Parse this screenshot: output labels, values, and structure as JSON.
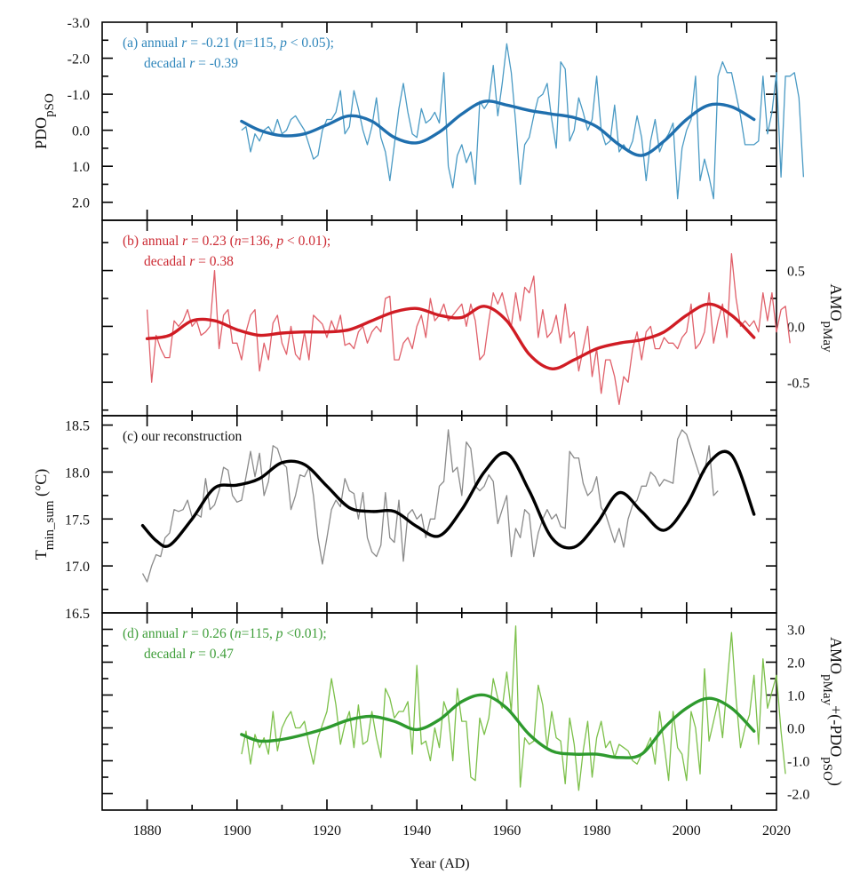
{
  "chart_data": [
    {
      "id": "a",
      "type": "line",
      "panel_label": "(a)",
      "annotation_line1": [
        "(a) annual ",
        "r",
        " = -0.21 (",
        "n",
        "=115, ",
        "p",
        " < 0.05);"
      ],
      "annotation_line2": [
        "decadal ",
        "r",
        " = -0.39"
      ],
      "ylabel_main": "PDO",
      "ylabel_sub": "pSO",
      "yaxis_side": "left",
      "ylim": [
        -3.0,
        2.5
      ],
      "y_inverted": true,
      "yticks": [
        -3.0,
        -2.0,
        -1.0,
        0.0,
        1.0,
        2.0
      ],
      "ytick_labels": [
        "-3.0",
        "-2.0",
        "-1.0",
        "0.0",
        "1.0",
        "2.0"
      ],
      "color_annual": "#4a9ac4",
      "color_decadal": "#1f6fae",
      "color_text": "#2f86bb",
      "annual": {
        "x_start": 1901,
        "values": [
          0.0,
          -0.1,
          0.6,
          0.1,
          0.3,
          0.0,
          -0.1,
          0.1,
          -0.3,
          0.1,
          0.0,
          -0.3,
          -0.4,
          -0.2,
          0.0,
          0.4,
          0.8,
          0.7,
          0.0,
          -0.3,
          -0.3,
          -0.5,
          -1.1,
          0.1,
          -0.1,
          -1.1,
          -0.6,
          0.0,
          0.4,
          -0.1,
          -0.9,
          0.2,
          0.6,
          1.4,
          0.4,
          -0.6,
          -1.3,
          -0.5,
          0.1,
          0.2,
          -0.6,
          -0.2,
          -0.3,
          -0.5,
          -0.2,
          -1.6,
          1.0,
          1.6,
          0.7,
          0.4,
          0.9,
          0.6,
          1.5,
          -0.8,
          -0.6,
          -0.8,
          -1.8,
          -0.4,
          -1.3,
          -2.4,
          -1.6,
          -0.2,
          1.5,
          0.4,
          0.2,
          -0.4,
          -0.9,
          -1.0,
          -1.3,
          -0.3,
          0.5,
          -1.9,
          -1.7,
          0.3,
          0.0,
          -0.9,
          -0.5,
          0.0,
          -0.3,
          -1.5,
          0.0,
          0.4,
          0.3,
          -0.7,
          0.6,
          0.4,
          0.6,
          0.3,
          -0.4,
          0.2,
          1.4,
          0.3,
          -0.3,
          0.6,
          0.3,
          0.1,
          -0.2,
          1.9,
          0.5,
          0.0,
          -0.3,
          -1.5,
          1.4,
          0.8,
          1.3,
          1.9,
          -1.5,
          -1.9,
          -1.6,
          -1.6,
          -1.0,
          -0.4,
          0.4,
          0.4,
          0.4,
          0.3,
          -1.5,
          0.1,
          -0.5,
          -1.6,
          1.3,
          -1.5,
          -1.5,
          -1.6,
          -0.9,
          1.3
        ],
        "note": "approximate values read from plot"
      },
      "decadal": {
        "x": [
          1901,
          1905,
          1910,
          1915,
          1920,
          1925,
          1930,
          1935,
          1940,
          1945,
          1950,
          1955,
          1960,
          1965,
          1970,
          1975,
          1980,
          1985,
          1990,
          1995,
          2000,
          2005,
          2010,
          2015
        ],
        "values": [
          -0.25,
          0.0,
          0.15,
          0.1,
          -0.15,
          -0.4,
          -0.25,
          0.2,
          0.35,
          0.05,
          -0.45,
          -0.8,
          -0.7,
          -0.55,
          -0.45,
          -0.35,
          -0.1,
          0.4,
          0.7,
          0.3,
          -0.3,
          -0.7,
          -0.65,
          -0.3
        ]
      }
    },
    {
      "id": "b",
      "type": "line",
      "panel_label": "(b)",
      "annotation_line1": [
        "(b) annual ",
        "r",
        " = 0.23 (",
        "n",
        "=136, ",
        "p",
        " < 0.01);"
      ],
      "annotation_line2": [
        "decadal ",
        "r",
        " = 0.38"
      ],
      "ylabel_main": "AMO",
      "ylabel_sub": "pMay",
      "yaxis_side": "right",
      "ylim": [
        -0.8,
        0.95
      ],
      "y_inverted": false,
      "yticks": [
        -0.5,
        0.0,
        0.5
      ],
      "ytick_labels": [
        "-0.5",
        "0.0",
        "0.5"
      ],
      "color_annual": "#e0606a",
      "color_decadal": "#d01c24",
      "color_text": "#cc2a33",
      "annual": {
        "x_start": 1880,
        "values": [
          0.15,
          -0.5,
          -0.08,
          -0.2,
          -0.28,
          -0.28,
          0.05,
          0.0,
          0.05,
          0.15,
          0.0,
          0.05,
          -0.08,
          -0.05,
          0.0,
          0.5,
          -0.2,
          0.1,
          0.15,
          -0.15,
          -0.15,
          -0.3,
          -0.05,
          0.1,
          0.15,
          -0.4,
          -0.15,
          -0.3,
          0.03,
          0.1,
          -0.15,
          -0.25,
          0.0,
          -0.25,
          -0.3,
          -0.05,
          -0.3,
          0.1,
          0.06,
          0.02,
          -0.1,
          0.05,
          -0.05,
          0.1,
          -0.17,
          -0.15,
          -0.2,
          -0.05,
          0.0,
          -0.15,
          -0.05,
          0.0,
          -0.05,
          0.25,
          0.27,
          -0.3,
          -0.3,
          -0.15,
          -0.1,
          -0.2,
          0.0,
          0.1,
          -0.1,
          0.25,
          0.05,
          0.1,
          0.2,
          0.05,
          0.1,
          0.15,
          0.2,
          0.0,
          0.2,
          0.05,
          -0.3,
          -0.25,
          0.05,
          0.3,
          0.2,
          0.3,
          0.12,
          0.0,
          0.3,
          0.05,
          0.35,
          0.3,
          0.45,
          -0.1,
          0.15,
          -0.1,
          -0.05,
          0.1,
          -0.15,
          0.2,
          -0.1,
          -0.05,
          -0.4,
          -0.2,
          0.0,
          -0.45,
          -0.2,
          -0.6,
          -0.3,
          -0.3,
          -0.45,
          -0.7,
          -0.45,
          -0.5,
          -0.2,
          -0.05,
          -0.3,
          -0.05,
          0.0,
          -0.2,
          -0.2,
          -0.1,
          -0.15,
          -0.15,
          -0.2,
          -0.1,
          -0.05,
          0.2,
          -0.2,
          -0.15,
          -0.05,
          0.3,
          -0.15,
          0.05,
          0.2,
          -0.1,
          0.65,
          0.25,
          0.0,
          0.05,
          0.0,
          0.05,
          -0.05,
          0.3,
          0.05,
          0.3,
          -0.05,
          0.15,
          0.18,
          -0.15
        ],
        "note": "approximate values read from plot"
      },
      "decadal": {
        "x": [
          1880,
          1885,
          1890,
          1895,
          1900,
          1905,
          1910,
          1915,
          1920,
          1925,
          1930,
          1935,
          1940,
          1945,
          1950,
          1955,
          1960,
          1965,
          1970,
          1975,
          1980,
          1985,
          1990,
          1995,
          2000,
          2005,
          2010,
          2015
        ],
        "values": [
          -0.11,
          -0.08,
          0.05,
          0.05,
          -0.03,
          -0.08,
          -0.06,
          -0.05,
          -0.05,
          -0.03,
          0.05,
          0.13,
          0.16,
          0.1,
          0.08,
          0.18,
          0.05,
          -0.25,
          -0.38,
          -0.3,
          -0.2,
          -0.15,
          -0.12,
          -0.05,
          0.1,
          0.2,
          0.1,
          -0.1
        ]
      }
    },
    {
      "id": "c",
      "type": "line",
      "panel_label": "(c)",
      "annotation_line1": [
        "(c) our reconstruction"
      ],
      "annotation_line2": [],
      "ylabel_main": "T",
      "ylabel_sub": "min_sum",
      "ylabel_unit": " (°C)",
      "yaxis_side": "left",
      "ylim": [
        16.5,
        18.6
      ],
      "y_inverted": false,
      "yticks": [
        16.5,
        17.0,
        17.5,
        18.0,
        18.5
      ],
      "ytick_labels": [
        "16.5",
        "17.0",
        "17.5",
        "18.0",
        "18.5"
      ],
      "color_annual": "#8a8a8a",
      "color_decadal": "#000000",
      "color_text": "#111111",
      "annual": {
        "x_start": 1879,
        "values": [
          16.92,
          16.83,
          17.0,
          17.12,
          17.1,
          17.3,
          17.35,
          17.6,
          17.58,
          17.6,
          17.7,
          17.52,
          17.55,
          17.52,
          17.93,
          17.6,
          17.65,
          17.8,
          18.05,
          18.02,
          17.75,
          17.68,
          17.7,
          17.95,
          18.22,
          17.95,
          18.2,
          17.75,
          17.9,
          18.28,
          18.25,
          18.1,
          18.05,
          17.6,
          17.75,
          17.97,
          17.95,
          18.05,
          17.75,
          17.3,
          17.02,
          17.3,
          17.6,
          17.7,
          17.63,
          17.93,
          17.8,
          17.77,
          17.5,
          17.78,
          17.3,
          17.15,
          17.1,
          17.22,
          17.78,
          17.3,
          17.25,
          17.7,
          17.05,
          17.55,
          17.6,
          17.5,
          17.55,
          17.3,
          17.5,
          17.5,
          17.85,
          17.9,
          18.45,
          18.0,
          18.05,
          17.75,
          18.32,
          18.25,
          17.85,
          17.8,
          17.85,
          17.97,
          17.9,
          17.45,
          17.6,
          17.75,
          17.1,
          17.4,
          17.3,
          17.6,
          17.55,
          17.1,
          17.35,
          17.5,
          17.6,
          17.5,
          17.55,
          17.42,
          17.4,
          18.22,
          18.15,
          18.15,
          17.88,
          17.75,
          17.8,
          17.95,
          17.62,
          17.55,
          17.4,
          17.25,
          17.4,
          17.2,
          17.5,
          17.65,
          17.7,
          17.85,
          17.85,
          18.0,
          17.95,
          17.85,
          17.92,
          17.9,
          17.88,
          18.35,
          18.45,
          18.4,
          18.25,
          18.1,
          17.95,
          18.0,
          18.28,
          17.75,
          17.8
        ],
        "note": "approximate values read from plot"
      },
      "decadal": {
        "x": [
          1879,
          1882,
          1885,
          1890,
          1895,
          1900,
          1905,
          1910,
          1915,
          1920,
          1925,
          1930,
          1935,
          1940,
          1945,
          1950,
          1955,
          1960,
          1965,
          1970,
          1975,
          1980,
          1985,
          1990,
          1995,
          2000,
          2005,
          2010,
          2015
        ],
        "values": [
          17.43,
          17.27,
          17.22,
          17.5,
          17.83,
          17.86,
          17.93,
          18.1,
          18.08,
          17.85,
          17.62,
          17.58,
          17.58,
          17.42,
          17.32,
          17.6,
          18.0,
          18.2,
          17.8,
          17.3,
          17.2,
          17.45,
          17.78,
          17.58,
          17.38,
          17.65,
          18.1,
          18.18,
          17.55
        ]
      }
    },
    {
      "id": "d",
      "type": "line",
      "panel_label": "(d)",
      "annotation_line1": [
        "(d) annual ",
        "r",
        " = 0.26 (",
        "n",
        "=115,  ",
        "p",
        " <0.01);"
      ],
      "annotation_line2": [
        "decadal ",
        "r",
        " = 0.47"
      ],
      "ylabel_main": "AMO",
      "ylabel_sub": "pMay",
      "ylabel_mid": "+(-PDO",
      "ylabel_sub2": "pSO",
      "ylabel_end": ")",
      "yaxis_side": "right",
      "ylim": [
        -2.5,
        3.5
      ],
      "y_inverted": false,
      "yticks": [
        -2.0,
        -1.0,
        0.0,
        1.0,
        2.0,
        3.0
      ],
      "ytick_labels": [
        "-2.0",
        "-1.0",
        "0.0",
        "1.0",
        "2.0",
        "3.0"
      ],
      "color_annual": "#7cc04a",
      "color_decadal": "#2e9a2e",
      "color_text": "#3f9e3a",
      "annual": {
        "x_start": 1901,
        "values": [
          -0.8,
          -0.1,
          -1.1,
          -0.2,
          -0.6,
          -0.3,
          -0.8,
          0.5,
          -0.7,
          0.0,
          0.3,
          0.5,
          0.0,
          0.0,
          0.2,
          -0.5,
          -1.1,
          -0.3,
          0.1,
          0.5,
          1.5,
          0.7,
          -0.5,
          0.1,
          0.5,
          -0.6,
          0.7,
          -0.5,
          -0.4,
          0.5,
          -0.3,
          -0.9,
          1.2,
          0.9,
          0.3,
          0.5,
          0.5,
          0.8,
          -0.8,
          1.9,
          -0.5,
          -0.4,
          -1.0,
          0.0,
          -0.6,
          0.8,
          0.4,
          -1.0,
          1.2,
          0.2,
          0.2,
          -1.5,
          -1.6,
          0.3,
          -0.2,
          0.3,
          1.5,
          0.9,
          0.6,
          1.7,
          0.5,
          3.1,
          -1.8,
          -0.3,
          -0.5,
          -0.4,
          1.3,
          0.7,
          -0.6,
          0.5,
          -0.3,
          -0.4,
          -1.7,
          0.3,
          -0.5,
          -1.9,
          -0.7,
          0.2,
          -1.5,
          -0.3,
          0.2,
          -0.6,
          -0.4,
          -0.9,
          -0.5,
          -0.6,
          -0.7,
          -1.0,
          -1.1,
          -0.8,
          -0.6,
          -0.3,
          -1.1,
          0.5,
          -0.5,
          -1.6,
          0.5,
          -0.6,
          -0.8,
          -1.6,
          0.5,
          0.0,
          -1.4,
          1.8,
          -0.4,
          0.2,
          0.8,
          -0.3,
          1.3,
          2.9,
          0.9,
          -0.6,
          0.0,
          0.4,
          1.6,
          -0.5,
          2.1,
          0.6,
          1.1,
          1.6,
          -0.1,
          -1.4
        ],
        "note": "approximate values read from plot"
      },
      "decadal": {
        "x": [
          1901,
          1905,
          1910,
          1915,
          1920,
          1925,
          1930,
          1935,
          1940,
          1945,
          1950,
          1955,
          1960,
          1965,
          1970,
          1975,
          1980,
          1985,
          1990,
          1995,
          2000,
          2005,
          2010,
          2015
        ],
        "values": [
          -0.2,
          -0.4,
          -0.35,
          -0.2,
          0.0,
          0.25,
          0.35,
          0.2,
          -0.05,
          0.25,
          0.8,
          1.0,
          0.6,
          -0.2,
          -0.7,
          -0.8,
          -0.8,
          -0.9,
          -0.8,
          0.0,
          0.6,
          0.9,
          0.6,
          -0.1
        ]
      }
    }
  ],
  "xaxis": {
    "label": "Year (AD)",
    "xlim": [
      1870,
      2020
    ],
    "ticks": [
      1880,
      1900,
      1920,
      1940,
      1960,
      1980,
      2000,
      2020
    ],
    "tick_labels": [
      "1880",
      "1900",
      "1920",
      "1940",
      "1960",
      "1980",
      "2000",
      "2020"
    ]
  }
}
